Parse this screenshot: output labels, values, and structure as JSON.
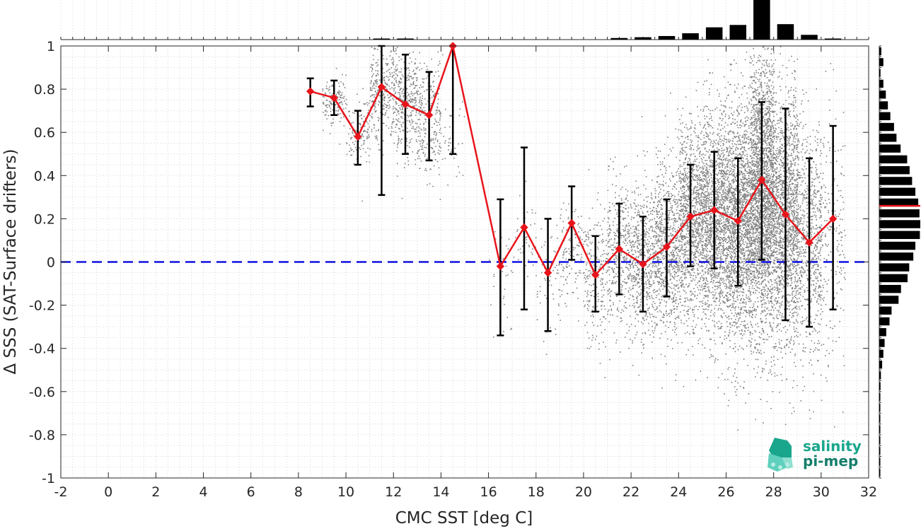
{
  "chart_data": {
    "type": "line",
    "xlabel": "CMC SST [deg C]",
    "ylabel": "Δ SSS (SAT-Surface drifters)",
    "xlim": [
      -2,
      32
    ],
    "ylim": [
      -1,
      1
    ],
    "xticks": [
      "-2",
      "0",
      "2",
      "4",
      "6",
      "8",
      "10",
      "12",
      "14",
      "16",
      "18",
      "20",
      "22",
      "24",
      "26",
      "28",
      "30",
      "32"
    ],
    "yticks": [
      "-1",
      "-0.8",
      "-0.6",
      "-0.4",
      "-0.2",
      "0",
      "0.2",
      "0.4",
      "0.6",
      "0.8",
      "1"
    ],
    "grid": true,
    "reference_line_y": 0,
    "series": [
      {
        "x": [
          8.5,
          9.5,
          10.5,
          11.5,
          12.5,
          13.5,
          14.5,
          16.5,
          17.5,
          18.5,
          19.5,
          20.5,
          21.5,
          22.5,
          23.5,
          24.5,
          25.5,
          26.5,
          27.5,
          28.5,
          29.5,
          30.5
        ],
        "y": [
          0.79,
          0.76,
          0.58,
          0.81,
          0.73,
          0.68,
          1.0,
          -0.02,
          0.16,
          -0.05,
          0.18,
          -0.06,
          0.06,
          -0.01,
          0.07,
          0.21,
          0.24,
          0.19,
          0.38,
          0.22,
          0.09,
          0.2
        ],
        "err_low": [
          0.72,
          0.68,
          0.45,
          0.31,
          0.5,
          0.47,
          0.5,
          -0.34,
          -0.22,
          -0.32,
          0.01,
          -0.23,
          -0.15,
          -0.23,
          -0.16,
          -0.02,
          -0.03,
          -0.11,
          0.01,
          -0.27,
          -0.3,
          -0.22
        ],
        "err_high": [
          0.85,
          0.84,
          0.7,
          1.0,
          0.96,
          0.88,
          1.0,
          0.29,
          0.53,
          0.2,
          0.35,
          0.12,
          0.27,
          0.21,
          0.29,
          0.45,
          0.51,
          0.48,
          0.74,
          0.71,
          0.48,
          0.63
        ],
        "color": "#e8141b"
      }
    ],
    "scatter_clusters": [
      {
        "x_range": [
          9,
          10
        ],
        "y_mean": 0.75,
        "y_sd": 0.05,
        "n": 140
      },
      {
        "x_range": [
          10,
          11
        ],
        "y_mean": 0.62,
        "y_sd": 0.08,
        "n": 120
      },
      {
        "x_range": [
          11,
          12
        ],
        "y_mean": 0.8,
        "y_sd": 0.12,
        "n": 300
      },
      {
        "x_range": [
          12,
          13
        ],
        "y_mean": 0.76,
        "y_sd": 0.12,
        "n": 360
      },
      {
        "x_range": [
          13,
          14
        ],
        "y_mean": 0.66,
        "y_sd": 0.14,
        "n": 260
      },
      {
        "x_range": [
          14,
          15
        ],
        "y_mean": 0.55,
        "y_sd": 0.12,
        "n": 40
      },
      {
        "x_range": [
          16,
          17
        ],
        "y_mean": -0.08,
        "y_sd": 0.15,
        "n": 30
      },
      {
        "x_range": [
          17,
          18
        ],
        "y_mean": 0.1,
        "y_sd": 0.12,
        "n": 40
      },
      {
        "x_range": [
          18,
          19
        ],
        "y_mean": -0.05,
        "y_sd": 0.12,
        "n": 60
      },
      {
        "x_range": [
          19,
          20
        ],
        "y_mean": 0.05,
        "y_sd": 0.12,
        "n": 120
      },
      {
        "x_range": [
          20,
          21
        ],
        "y_mean": -0.05,
        "y_sd": 0.15,
        "n": 220
      },
      {
        "x_range": [
          21,
          22
        ],
        "y_mean": 0.04,
        "y_sd": 0.17,
        "n": 380
      },
      {
        "x_range": [
          22,
          23
        ],
        "y_mean": 0.0,
        "y_sd": 0.18,
        "n": 550
      },
      {
        "x_range": [
          23,
          24
        ],
        "y_mean": 0.06,
        "y_sd": 0.2,
        "n": 750
      },
      {
        "x_range": [
          24,
          25
        ],
        "y_mean": 0.18,
        "y_sd": 0.22,
        "n": 1100
      },
      {
        "x_range": [
          25,
          26
        ],
        "y_mean": 0.2,
        "y_sd": 0.25,
        "n": 1400
      },
      {
        "x_range": [
          26,
          27
        ],
        "y_mean": 0.18,
        "y_sd": 0.27,
        "n": 1700
      },
      {
        "x_range": [
          27,
          28
        ],
        "y_mean": 0.32,
        "y_sd": 0.32,
        "n": 2600
      },
      {
        "x_range": [
          28,
          29
        ],
        "y_mean": 0.2,
        "y_sd": 0.3,
        "n": 1600
      },
      {
        "x_range": [
          29,
          30
        ],
        "y_mean": 0.1,
        "y_sd": 0.28,
        "n": 700
      },
      {
        "x_range": [
          30,
          31
        ],
        "y_mean": 0.1,
        "y_sd": 0.28,
        "n": 200
      }
    ],
    "top_histogram": {
      "bin_centers": [
        11.5,
        12.5,
        21.5,
        22.5,
        23.5,
        24.5,
        25.5,
        26.5,
        27.5,
        28.5,
        29.5,
        30.5
      ],
      "counts": [
        0.01,
        0.01,
        0.04,
        0.06,
        0.09,
        0.16,
        0.31,
        0.37,
        1.0,
        0.39,
        0.12,
        0.02
      ]
    },
    "right_histogram": {
      "bin_edges": [
        -1,
        -0.95,
        -0.9,
        -0.85,
        -0.8,
        -0.75,
        -0.7,
        -0.65,
        -0.6,
        -0.55,
        -0.5,
        -0.45,
        -0.4,
        -0.35,
        -0.3,
        -0.25,
        -0.2,
        -0.15,
        -0.1,
        -0.05,
        0,
        0.05,
        0.1,
        0.15,
        0.2,
        0.25,
        0.3,
        0.35,
        0.4,
        0.45,
        0.5,
        0.55,
        0.6,
        0.65,
        0.7,
        0.75,
        0.8,
        0.85,
        0.9,
        0.95,
        1
      ],
      "counts": [
        0.01,
        0.01,
        0.01,
        0.01,
        0.01,
        0.01,
        0.01,
        0.02,
        0.03,
        0.04,
        0.07,
        0.1,
        0.13,
        0.17,
        0.25,
        0.3,
        0.47,
        0.53,
        0.69,
        0.73,
        0.83,
        0.88,
        0.99,
        1.0,
        0.98,
        0.95,
        0.88,
        0.8,
        0.74,
        0.68,
        0.52,
        0.42,
        0.36,
        0.27,
        0.21,
        0.16,
        0.1,
        0.03,
        0.1,
        0.05
      ],
      "mean_line_y": 0.26,
      "mean_line_color": "#e8141b"
    },
    "colors": {
      "mean_line": "#e8141b",
      "errorbar": "#000000",
      "scatter": "#808080",
      "zero_line": "#1010e0",
      "histogram": "#000000"
    }
  },
  "logo": {
    "line1": "salinity",
    "line2": "pi-mep",
    "color": "#1aa68c"
  }
}
